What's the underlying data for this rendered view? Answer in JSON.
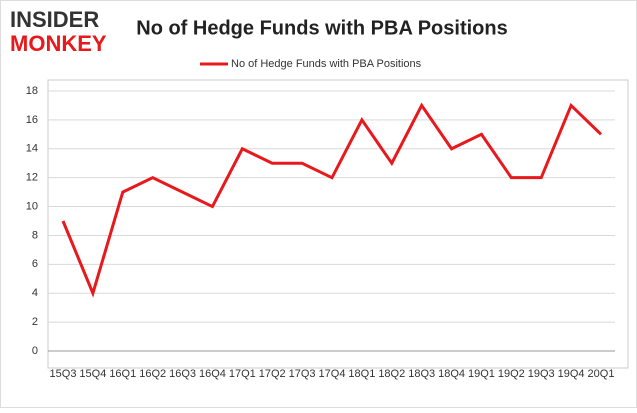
{
  "logo": {
    "line1": "INSIDER",
    "line2": "MONKEY"
  },
  "chart_data": {
    "type": "line",
    "title": "No of Hedge Funds with PBA Positions",
    "categories": [
      "15Q3",
      "15Q4",
      "16Q1",
      "16Q2",
      "16Q3",
      "16Q4",
      "17Q1",
      "17Q2",
      "17Q3",
      "17Q4",
      "18Q1",
      "18Q2",
      "18Q3",
      "18Q4",
      "19Q1",
      "19Q2",
      "19Q3",
      "19Q4",
      "20Q1"
    ],
    "series": [
      {
        "name": "No of Hedge Funds with PBA Positions",
        "color": "#e8191c",
        "values": [
          9,
          4,
          11,
          12,
          11,
          10,
          14,
          13,
          13,
          12,
          16,
          13,
          17,
          14,
          15,
          12,
          12,
          17,
          15
        ]
      }
    ],
    "ylim": [
      0,
      18
    ],
    "yticks": [
      0,
      2,
      4,
      6,
      8,
      10,
      12,
      14,
      16,
      18
    ],
    "grid": true,
    "legend": "top"
  }
}
